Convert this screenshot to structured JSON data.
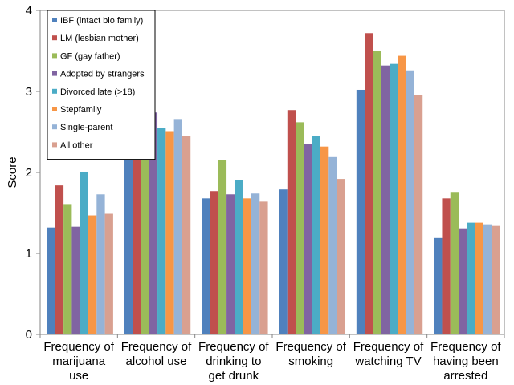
{
  "chart_data": {
    "type": "bar",
    "title": "",
    "xlabel": "",
    "ylabel": "Score",
    "ylim": [
      0,
      4
    ],
    "yticks": [
      0,
      1,
      2,
      3,
      4
    ],
    "grid": false,
    "legend_position": "top-left",
    "categories": [
      [
        "Frequency of",
        "marijuana",
        "use"
      ],
      [
        "Frequency of",
        "alcohol use"
      ],
      [
        "Frequency of",
        "drinking to",
        "get drunk"
      ],
      [
        "Frequency of",
        "smoking"
      ],
      [
        "Frequency of",
        "watching TV"
      ],
      [
        "Frequency of",
        "having been",
        "arrested"
      ]
    ],
    "series": [
      {
        "name": "IBF (intact bio family)",
        "color": "#4F81BD",
        "values": [
          1.32,
          2.7,
          1.68,
          1.79,
          3.02,
          1.19
        ]
      },
      {
        "name": "LM (lesbian mother)",
        "color": "#C0504D",
        "values": [
          1.84,
          2.37,
          1.77,
          2.77,
          3.72,
          1.68
        ]
      },
      {
        "name": "GF (gay father)",
        "color": "#9BBB59",
        "values": [
          1.61,
          2.7,
          2.15,
          2.62,
          3.5,
          1.75
        ]
      },
      {
        "name": "Adopted by strangers",
        "color": "#8064A2",
        "values": [
          1.33,
          2.74,
          1.73,
          2.35,
          3.32,
          1.31
        ]
      },
      {
        "name": "Divorced late (>18)",
        "color": "#4BACC6",
        "values": [
          2.01,
          2.55,
          1.91,
          2.45,
          3.34,
          1.38
        ]
      },
      {
        "name": "Stepfamily",
        "color": "#F79646",
        "values": [
          1.47,
          2.51,
          1.68,
          2.32,
          3.44,
          1.38
        ]
      },
      {
        "name": "Single-parent",
        "color": "#95B3D7",
        "values": [
          1.73,
          2.66,
          1.74,
          2.19,
          3.26,
          1.36
        ]
      },
      {
        "name": "All other",
        "color": "#D9A090",
        "values": [
          1.49,
          2.45,
          1.64,
          1.92,
          2.96,
          1.34
        ]
      }
    ]
  }
}
